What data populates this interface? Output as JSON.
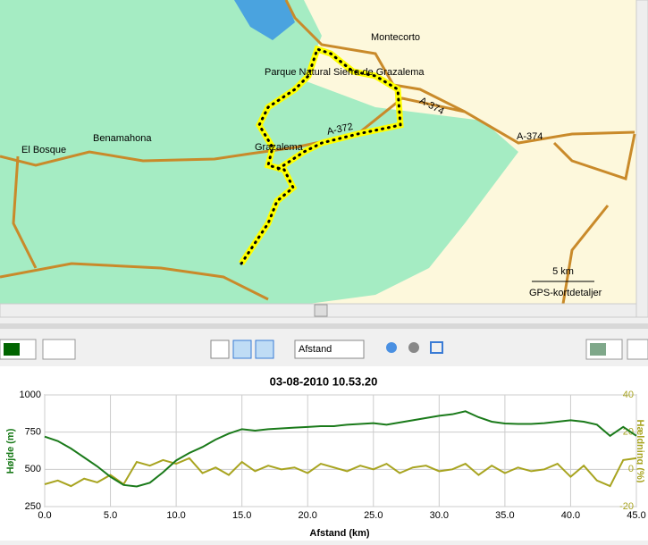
{
  "map": {
    "labels": {
      "montecorto": "Montecorto",
      "park": "Parque Natural Sierra de Grazalema",
      "road1": "A-374",
      "road2": "A-374",
      "road3": "A-372",
      "benamahona": "Benamahona",
      "elbosque": "El Bosque",
      "grazalema": "Grazalema"
    },
    "scale": "5 km",
    "details": "GPS-kortdetaljer"
  },
  "toolbar": {
    "mode": "Afstand"
  },
  "chart_data": {
    "type": "line",
    "title": "03-08-2010 10.53.20",
    "x_label": "Afstand (km)",
    "y_label": "Højde (m)",
    "y2_label": "Hældning (%)",
    "x": [
      0,
      1,
      2,
      3,
      4,
      5,
      6,
      7,
      8,
      9,
      10,
      11,
      12,
      13,
      14,
      15,
      16,
      17,
      18,
      19,
      20,
      21,
      22,
      23,
      24,
      25,
      26,
      27,
      28,
      29,
      30,
      31,
      32,
      33,
      34,
      35,
      36,
      37,
      38,
      39,
      40,
      41,
      42,
      43,
      44,
      45
    ],
    "series": [
      {
        "name": "Højde",
        "color": "#1a7a1a",
        "values": [
          720,
          690,
          640,
          580,
          520,
          450,
          395,
          385,
          410,
          480,
          560,
          610,
          650,
          700,
          740,
          770,
          760,
          770,
          775,
          780,
          785,
          790,
          790,
          800,
          805,
          810,
          800,
          815,
          830,
          845,
          860,
          870,
          890,
          850,
          820,
          808,
          805,
          805,
          810,
          820,
          830,
          820,
          800,
          725,
          785,
          725
        ]
      },
      {
        "name": "Hældning",
        "color": "#a8a420",
        "axis": "y2",
        "values": [
          -8,
          -6,
          -9,
          -5,
          -7,
          -3,
          -8,
          4,
          2,
          5,
          3,
          6,
          -2,
          1,
          -3,
          4,
          -1,
          2,
          0,
          1,
          -2,
          3,
          1,
          -1,
          2,
          0,
          3,
          -2,
          1,
          2,
          -1,
          0,
          3,
          -3,
          2,
          -2,
          1,
          -1,
          0,
          3,
          -4,
          2,
          -6,
          -9,
          5,
          6
        ]
      }
    ],
    "xlim": [
      0,
      45
    ],
    "xticks": [
      {
        "value": 0,
        "label": "0.0"
      },
      {
        "value": 5,
        "label": "5.0"
      },
      {
        "value": 10,
        "label": "10.0"
      },
      {
        "value": 15,
        "label": "15.0"
      },
      {
        "value": 20,
        "label": "20.0"
      },
      {
        "value": 25,
        "label": "25.0"
      },
      {
        "value": 30,
        "label": "30.0"
      },
      {
        "value": 35,
        "label": "35.0"
      },
      {
        "value": 40,
        "label": "40.0"
      },
      {
        "value": 45,
        "label": "45.0"
      }
    ],
    "ylim": [
      250,
      1000
    ],
    "yticks": [
      250,
      500,
      750,
      1000
    ],
    "y2lim": [
      -20,
      40
    ],
    "y2ticks": [
      -20,
      0,
      20,
      40
    ],
    "grid": true
  }
}
